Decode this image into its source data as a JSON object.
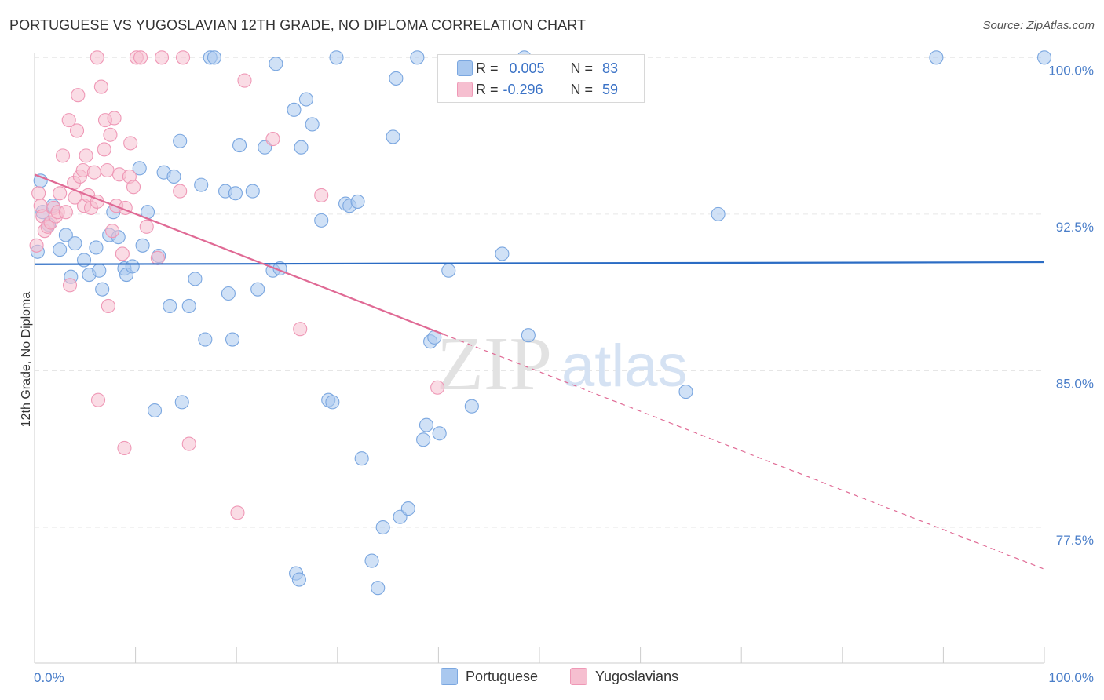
{
  "header": {
    "title": "PORTUGUESE VS YUGOSLAVIAN 12TH GRADE, NO DIPLOMA CORRELATION CHART",
    "source": "Source: ZipAtlas.com"
  },
  "watermark": {
    "zip": "ZIP",
    "atlas": "atlas"
  },
  "stats": [
    {
      "r_label": "R =",
      "r_value": "0.005",
      "n_label": "N =",
      "n_value": "83",
      "color": "#7ba7e0"
    },
    {
      "r_label": "R =",
      "r_value": "-0.296",
      "n_label": "N =",
      "n_value": "59",
      "color": "#ef98b6"
    }
  ],
  "legend": [
    {
      "label": "Portuguese",
      "color": "#a9c8ef"
    },
    {
      "label": "Yugoslavians",
      "color": "#f6bfd0"
    }
  ],
  "colors": {
    "portuguese_fill": "#a9c8ef",
    "portuguese_stroke": "#7ba7e0",
    "portuguese_line": "#2b6cc4",
    "yugoslavian_fill": "#f6bfd0",
    "yugoslavian_stroke": "#ef98b6",
    "yugoslavian_line": "#e06a95",
    "grid": "#e6e6e6",
    "tick_text": "#4a7ec9"
  },
  "chart_data": {
    "type": "scatter",
    "title": "PORTUGUESE VS YUGOSLAVIAN 12TH GRADE, NO DIPLOMA CORRELATION CHART",
    "xlabel": "",
    "ylabel": "12th Grade, No Diploma",
    "xlim": [
      0,
      100
    ],
    "ylim": [
      71.0,
      100.5
    ],
    "x_tick_labels": [
      "0.0%",
      "100.0%"
    ],
    "y_ticks": [
      77.5,
      85.0,
      92.5,
      100.0
    ],
    "y_tick_labels": [
      "77.5%",
      "85.0%",
      "92.5%",
      "100.0%"
    ],
    "grid": true,
    "series": [
      {
        "name": "Portuguese",
        "trend": {
          "x": [
            0,
            100
          ],
          "y": [
            90.1,
            90.2
          ],
          "solid_until": 100
        },
        "points": [
          [
            0.3,
            90.7
          ],
          [
            0.8,
            92.6
          ],
          [
            1.4,
            92.0
          ],
          [
            1.8,
            92.9
          ],
          [
            2.5,
            90.8
          ],
          [
            3.1,
            91.5
          ],
          [
            3.6,
            89.5
          ],
          [
            4.0,
            91.1
          ],
          [
            4.9,
            90.3
          ],
          [
            5.4,
            89.6
          ],
          [
            6.1,
            90.9
          ],
          [
            6.4,
            89.8
          ],
          [
            6.7,
            88.9
          ],
          [
            7.4,
            91.5
          ],
          [
            7.8,
            92.6
          ],
          [
            8.3,
            91.4
          ],
          [
            8.9,
            89.9
          ],
          [
            9.1,
            89.6
          ],
          [
            9.7,
            90.0
          ],
          [
            10.4,
            94.7
          ],
          [
            10.7,
            91.0
          ],
          [
            11.2,
            92.6
          ],
          [
            11.9,
            83.1
          ],
          [
            12.3,
            90.5
          ],
          [
            12.8,
            94.5
          ],
          [
            13.4,
            88.1
          ],
          [
            13.8,
            94.3
          ],
          [
            14.4,
            96.0
          ],
          [
            14.6,
            83.5
          ],
          [
            15.3,
            88.1
          ],
          [
            15.9,
            89.4
          ],
          [
            16.5,
            93.9
          ],
          [
            16.9,
            86.5
          ],
          [
            17.4,
            100.0
          ],
          [
            17.8,
            100.0
          ],
          [
            18.9,
            93.6
          ],
          [
            19.2,
            88.7
          ],
          [
            19.6,
            86.5
          ],
          [
            19.9,
            93.5
          ],
          [
            20.3,
            95.8
          ],
          [
            21.6,
            93.6
          ],
          [
            22.1,
            88.9
          ],
          [
            22.8,
            95.7
          ],
          [
            23.6,
            89.8
          ],
          [
            23.9,
            99.7
          ],
          [
            24.3,
            89.9
          ],
          [
            25.7,
            97.5
          ],
          [
            25.9,
            75.3
          ],
          [
            26.2,
            75.0
          ],
          [
            26.4,
            95.7
          ],
          [
            26.9,
            98.0
          ],
          [
            27.5,
            96.8
          ],
          [
            28.4,
            92.2
          ],
          [
            29.1,
            83.6
          ],
          [
            29.5,
            83.5
          ],
          [
            29.9,
            100.0
          ],
          [
            30.8,
            93.0
          ],
          [
            31.2,
            92.9
          ],
          [
            32.0,
            93.1
          ],
          [
            32.4,
            80.8
          ],
          [
            33.4,
            75.9
          ],
          [
            34.0,
            74.6
          ],
          [
            34.5,
            77.5
          ],
          [
            35.5,
            96.2
          ],
          [
            35.8,
            99.0
          ],
          [
            36.2,
            78.0
          ],
          [
            37.0,
            78.4
          ],
          [
            37.9,
            100.0
          ],
          [
            38.5,
            81.7
          ],
          [
            38.8,
            82.4
          ],
          [
            39.2,
            86.4
          ],
          [
            39.6,
            86.6
          ],
          [
            40.1,
            82.0
          ],
          [
            41.0,
            89.8
          ],
          [
            43.3,
            83.3
          ],
          [
            46.3,
            90.6
          ],
          [
            48.5,
            100.0
          ],
          [
            48.9,
            86.7
          ],
          [
            64.5,
            84.0
          ],
          [
            67.7,
            92.5
          ],
          [
            89.3,
            100.0
          ],
          [
            100.0,
            100.0
          ],
          [
            0.6,
            94.1
          ]
        ]
      },
      {
        "name": "Yugoslavians",
        "trend": {
          "x": [
            0,
            100
          ],
          "y": [
            94.4,
            75.5
          ],
          "solid_until": 40.5
        },
        "points": [
          [
            0.2,
            91.0
          ],
          [
            0.4,
            93.5
          ],
          [
            0.6,
            92.9
          ],
          [
            0.8,
            92.4
          ],
          [
            1.0,
            91.7
          ],
          [
            1.3,
            91.9
          ],
          [
            1.6,
            92.1
          ],
          [
            1.9,
            92.8
          ],
          [
            2.1,
            92.4
          ],
          [
            2.3,
            92.6
          ],
          [
            2.5,
            93.5
          ],
          [
            2.8,
            95.3
          ],
          [
            3.1,
            92.6
          ],
          [
            3.4,
            97.0
          ],
          [
            3.5,
            89.1
          ],
          [
            3.9,
            94.0
          ],
          [
            4.0,
            93.3
          ],
          [
            4.2,
            96.5
          ],
          [
            4.3,
            98.2
          ],
          [
            4.5,
            94.3
          ],
          [
            4.8,
            94.6
          ],
          [
            4.9,
            92.9
          ],
          [
            5.1,
            95.3
          ],
          [
            5.3,
            93.4
          ],
          [
            5.6,
            92.8
          ],
          [
            5.9,
            94.5
          ],
          [
            6.2,
            93.1
          ],
          [
            6.3,
            83.6
          ],
          [
            6.6,
            98.6
          ],
          [
            6.9,
            95.6
          ],
          [
            7.0,
            97.0
          ],
          [
            7.2,
            94.6
          ],
          [
            7.3,
            88.1
          ],
          [
            7.5,
            96.3
          ],
          [
            7.7,
            91.7
          ],
          [
            7.9,
            97.1
          ],
          [
            8.1,
            92.9
          ],
          [
            8.4,
            94.4
          ],
          [
            8.7,
            90.6
          ],
          [
            8.9,
            81.3
          ],
          [
            9.0,
            92.8
          ],
          [
            9.4,
            94.3
          ],
          [
            9.5,
            95.9
          ],
          [
            9.8,
            93.8
          ],
          [
            10.1,
            100.0
          ],
          [
            10.5,
            100.0
          ],
          [
            11.1,
            91.9
          ],
          [
            12.2,
            90.4
          ],
          [
            12.6,
            100.0
          ],
          [
            14.4,
            93.6
          ],
          [
            14.7,
            100.0
          ],
          [
            15.3,
            81.5
          ],
          [
            20.1,
            78.2
          ],
          [
            20.8,
            98.9
          ],
          [
            23.6,
            96.1
          ],
          [
            26.3,
            87.0
          ],
          [
            28.4,
            93.4
          ],
          [
            39.9,
            84.2
          ],
          [
            6.2,
            100.0
          ]
        ]
      }
    ]
  }
}
